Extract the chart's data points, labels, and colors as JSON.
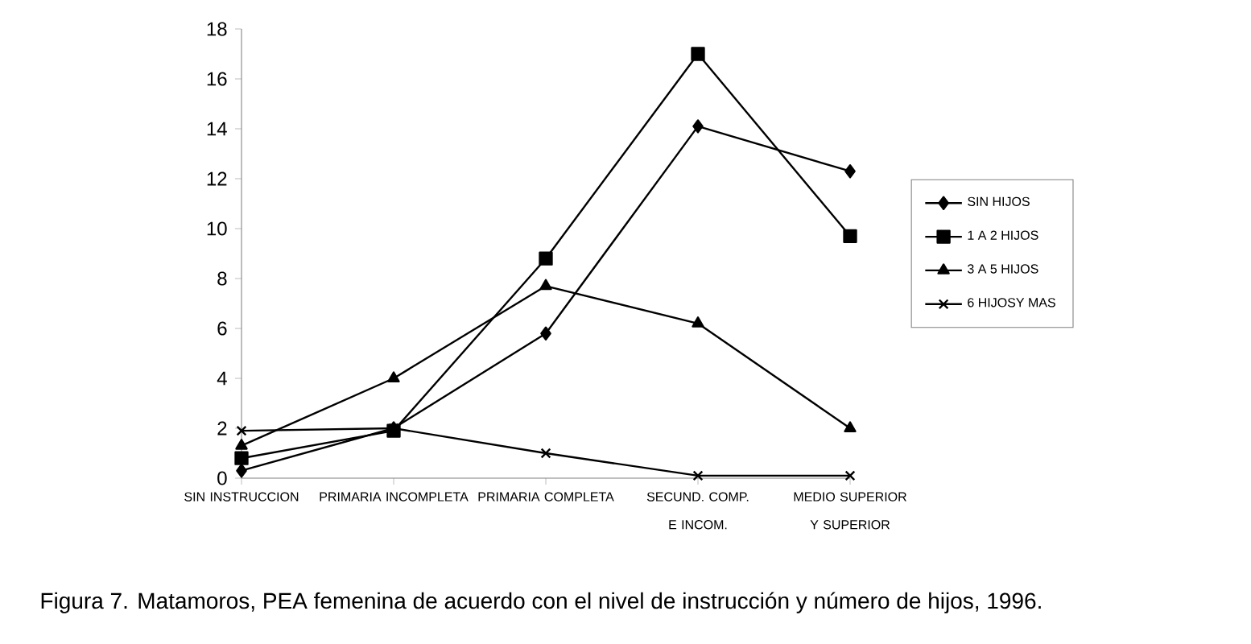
{
  "chart_data": {
    "type": "line",
    "categories": [
      "SIN INSTRUCCION",
      "PRIMARIA INCOMPLETA",
      "PRIMARIA COMPLETA",
      "SECUND. COMP. E INCOM.",
      "MEDIO SUPERIOR Y SUPERIOR"
    ],
    "series": [
      {
        "name": "SIN HIJOS",
        "color": "#000000",
        "marker": "diamond",
        "values": [
          0.3,
          2.0,
          5.8,
          14.1,
          12.3
        ]
      },
      {
        "name": "1 A 2 HIJOS",
        "color": "#000000",
        "marker": "square",
        "values": [
          0.8,
          1.9,
          8.8,
          17.0,
          9.7
        ]
      },
      {
        "name": "3 A 5 HIJOS",
        "color": "#000000",
        "marker": "triangle",
        "values": [
          1.3,
          4.0,
          7.7,
          6.2,
          2.0
        ]
      },
      {
        "name": "6 HIJOSY MAS",
        "color": "#000000",
        "marker": "cross",
        "values": [
          1.9,
          2.0,
          1.0,
          0.1,
          0.1
        ]
      }
    ],
    "ylim": [
      0,
      18
    ],
    "yticks": [
      0,
      2,
      4,
      6,
      8,
      10,
      12,
      14,
      16,
      18
    ],
    "grid": false,
    "legend": "right",
    "line_style": "solid",
    "annotations": [
      "Figura 7. Matamoros, PEA femenina de acuerdo con el nivel de instrucción y número de hijos, 1996."
    ]
  }
}
